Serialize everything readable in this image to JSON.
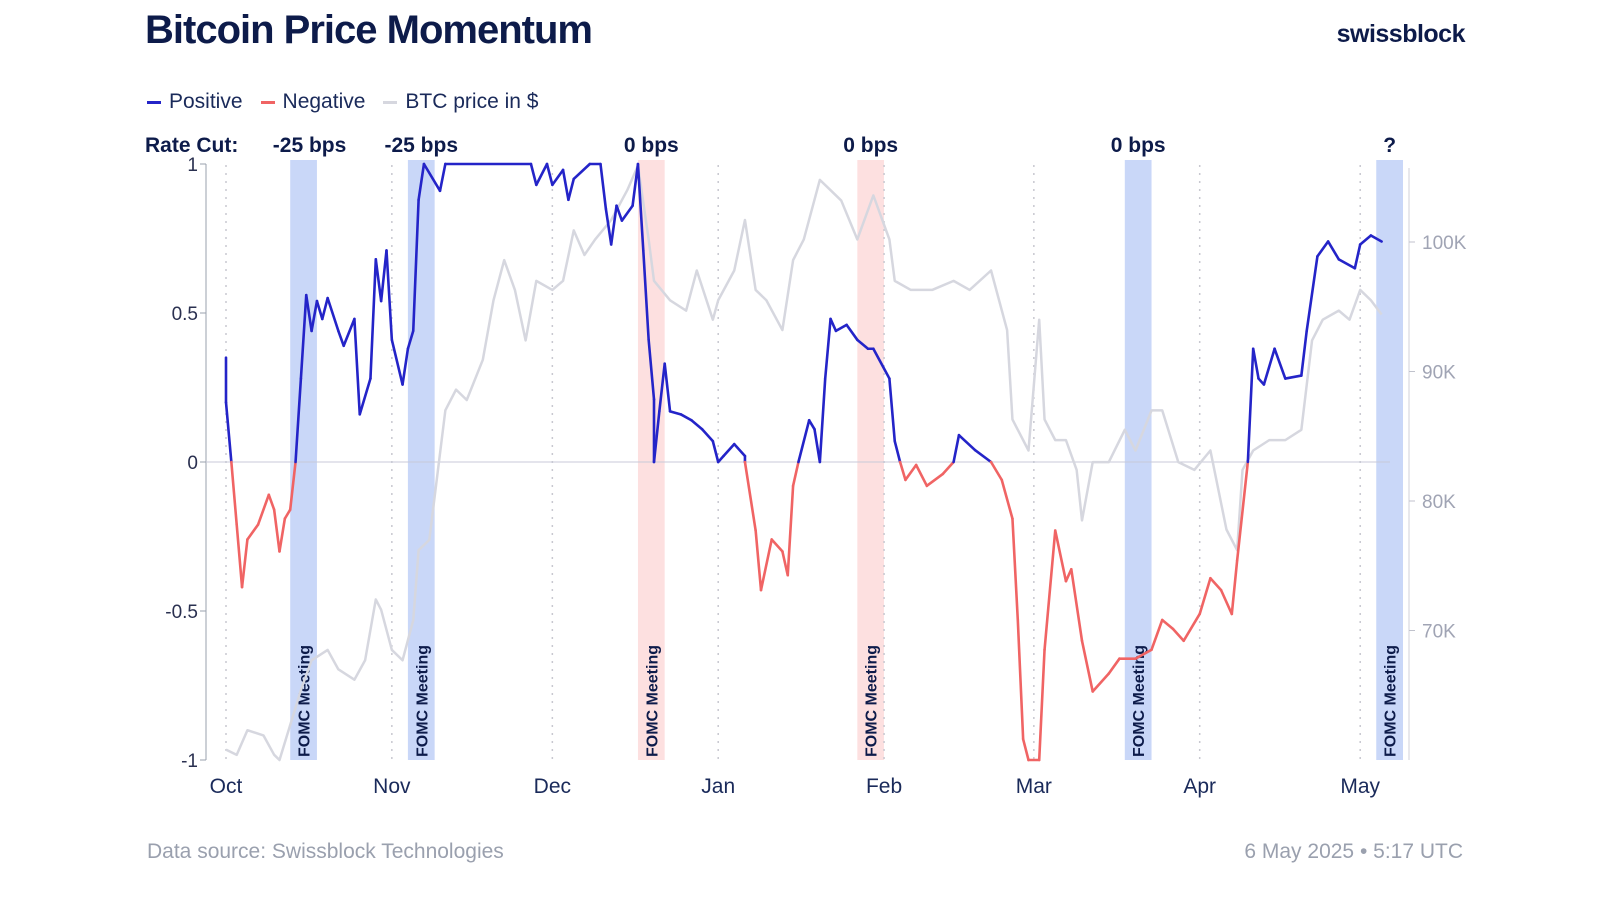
{
  "title": "Bitcoin Price Momentum",
  "logo": "swissblock",
  "footer": {
    "source": "Data source: Swissblock Technologies",
    "timestamp": "6 May 2025 • 5:17 UTC"
  },
  "chart_data": {
    "type": "line",
    "title": "Bitcoin Price Momentum",
    "legend": {
      "placement": "top-left",
      "entries": [
        {
          "name": "Positive",
          "color": "#2424c8"
        },
        {
          "name": "Negative",
          "color": "#f06464"
        },
        {
          "name": "BTC price in $",
          "color": "#d6d7df"
        }
      ]
    },
    "rate_cut_label": "Rate Cut:",
    "x_ticks": [
      {
        "date": "2024-10-01",
        "label": "Oct"
      },
      {
        "date": "2024-11-01",
        "label": "Nov"
      },
      {
        "date": "2024-12-01",
        "label": "Dec"
      },
      {
        "date": "2025-01-01",
        "label": "Jan"
      },
      {
        "date": "2025-02-01",
        "label": "Feb"
      },
      {
        "date": "2025-03-01",
        "label": "Mar"
      },
      {
        "date": "2025-04-01",
        "label": "Apr"
      },
      {
        "date": "2025-05-01",
        "label": "May"
      }
    ],
    "x_range": [
      "2024-10-01",
      "2025-05-09"
    ],
    "y_left": {
      "range": [
        -1,
        1
      ],
      "ticks": [
        {
          "v": 1,
          "label": "1"
        },
        {
          "v": 0.5,
          "label": "0.5"
        },
        {
          "v": 0,
          "label": "0"
        },
        {
          "v": -0.5,
          "label": "-0.5"
        },
        {
          "v": -1,
          "label": "-1"
        }
      ]
    },
    "y_right": {
      "range": [
        60,
        106
      ],
      "unit": "K $",
      "ticks": [
        {
          "v": 100,
          "label": "100K"
        },
        {
          "v": 90,
          "label": "90K"
        },
        {
          "v": 80,
          "label": "80K"
        },
        {
          "v": 70,
          "label": "70K"
        }
      ]
    },
    "fomc_meetings": [
      {
        "start": "2024-10-13",
        "end": "2024-10-18",
        "label": "FOMC Meeting",
        "rate": "-25 bps",
        "color": "#c9d7f8"
      },
      {
        "start": "2024-11-04",
        "end": "2024-11-09",
        "label": "FOMC Meeting",
        "rate": "-25 bps",
        "color": "#c9d7f8"
      },
      {
        "start": "2024-12-17",
        "end": "2024-12-22",
        "label": "FOMC Meeting",
        "rate": "0 bps",
        "color": "#fde0e0"
      },
      {
        "start": "2025-01-27",
        "end": "2025-02-01",
        "label": "FOMC Meeting",
        "rate": "0 bps",
        "color": "#fde0e0"
      },
      {
        "start": "2025-03-18",
        "end": "2025-03-23",
        "label": "FOMC Meeting",
        "rate": "0 bps",
        "color": "#c9d7f8"
      },
      {
        "start": "2025-05-04",
        "end": "2025-05-09",
        "label": "FOMC Meeting",
        "rate": "?",
        "color": "#c9d7f8"
      }
    ],
    "momentum": [
      [
        "2024-10-01",
        0.35
      ],
      [
        "2024-10-01",
        0.2
      ],
      [
        "2024-10-02",
        0
      ],
      [
        "2024-10-03",
        -0.21
      ],
      [
        "2024-10-04",
        -0.42
      ],
      [
        "2024-10-05",
        -0.26
      ],
      [
        "2024-10-07",
        -0.21
      ],
      [
        "2024-10-09",
        -0.11
      ],
      [
        "2024-10-10",
        -0.16
      ],
      [
        "2024-10-11",
        -0.3
      ],
      [
        "2024-10-12",
        -0.19
      ],
      [
        "2024-10-13",
        -0.16
      ],
      [
        "2024-10-14",
        0
      ],
      [
        "2024-10-15",
        0.28
      ],
      [
        "2024-10-16",
        0.56
      ],
      [
        "2024-10-17",
        0.44
      ],
      [
        "2024-10-18",
        0.54
      ],
      [
        "2024-10-19",
        0.48
      ],
      [
        "2024-10-20",
        0.55
      ],
      [
        "2024-10-22",
        0.44
      ],
      [
        "2024-10-23",
        0.39
      ],
      [
        "2024-10-25",
        0.48
      ],
      [
        "2024-10-26",
        0.16
      ],
      [
        "2024-10-28",
        0.28
      ],
      [
        "2024-10-29",
        0.68
      ],
      [
        "2024-10-30",
        0.54
      ],
      [
        "2024-10-31",
        0.71
      ],
      [
        "2024-11-01",
        0.41
      ],
      [
        "2024-11-03",
        0.26
      ],
      [
        "2024-11-04",
        0.38
      ],
      [
        "2024-11-05",
        0.44
      ],
      [
        "2024-11-06",
        0.88
      ],
      [
        "2024-11-07",
        1
      ],
      [
        "2024-11-10",
        0.91
      ],
      [
        "2024-11-11",
        1
      ],
      [
        "2024-11-27",
        1
      ],
      [
        "2024-11-28",
        0.93
      ],
      [
        "2024-11-30",
        1
      ],
      [
        "2024-12-01",
        0.93
      ],
      [
        "2024-12-03",
        0.98
      ],
      [
        "2024-12-04",
        0.88
      ],
      [
        "2024-12-05",
        0.95
      ],
      [
        "2024-12-08",
        1
      ],
      [
        "2024-12-10",
        1
      ],
      [
        "2024-12-11",
        0.85
      ],
      [
        "2024-12-12",
        0.73
      ],
      [
        "2024-12-13",
        0.86
      ],
      [
        "2024-12-14",
        0.81
      ],
      [
        "2024-12-16",
        0.86
      ],
      [
        "2024-12-17",
        1
      ],
      [
        "2024-12-18",
        0.71
      ],
      [
        "2024-12-19",
        0.41
      ],
      [
        "2024-12-20",
        0.21
      ],
      [
        "2024-12-20",
        0
      ],
      [
        "2024-12-21",
        0.17
      ],
      [
        "2024-12-22",
        0.33
      ],
      [
        "2024-12-23",
        0.17
      ],
      [
        "2024-12-25",
        0.16
      ],
      [
        "2024-12-27",
        0.14
      ],
      [
        "2024-12-29",
        0.11
      ],
      [
        "2024-12-31",
        0.07
      ],
      [
        "2025-01-01",
        0
      ],
      [
        "2025-01-02",
        0.02
      ],
      [
        "2025-01-04",
        0.06
      ],
      [
        "2025-01-06",
        0.02
      ],
      [
        "2025-01-06",
        0
      ],
      [
        "2025-01-08",
        -0.23
      ],
      [
        "2025-01-09",
        -0.43
      ],
      [
        "2025-01-11",
        -0.26
      ],
      [
        "2025-01-13",
        -0.3
      ],
      [
        "2025-01-14",
        -0.38
      ],
      [
        "2025-01-15",
        -0.08
      ],
      [
        "2025-01-16",
        0
      ],
      [
        "2025-01-18",
        0.14
      ],
      [
        "2025-01-19",
        0.11
      ],
      [
        "2025-01-20",
        0
      ],
      [
        "2025-01-21",
        0.28
      ],
      [
        "2025-01-22",
        0.48
      ],
      [
        "2025-01-23",
        0.44
      ],
      [
        "2025-01-25",
        0.46
      ],
      [
        "2025-01-27",
        0.41
      ],
      [
        "2025-01-29",
        0.38
      ],
      [
        "2025-01-30",
        0.38
      ],
      [
        "2025-02-02",
        0.28
      ],
      [
        "2025-02-03",
        0.07
      ],
      [
        "2025-02-04",
        0
      ],
      [
        "2025-02-05",
        -0.06
      ],
      [
        "2025-02-07",
        -0.01
      ],
      [
        "2025-02-09",
        -0.08
      ],
      [
        "2025-02-12",
        -0.04
      ],
      [
        "2025-02-14",
        0
      ],
      [
        "2025-02-15",
        0.09
      ],
      [
        "2025-02-18",
        0.04
      ],
      [
        "2025-02-21",
        0
      ],
      [
        "2025-02-23",
        -0.06
      ],
      [
        "2025-02-25",
        -0.19
      ],
      [
        "2025-02-26",
        -0.53
      ],
      [
        "2025-02-27",
        -0.93
      ],
      [
        "2025-02-28",
        -1
      ],
      [
        "2025-03-02",
        -1
      ],
      [
        "2025-03-03",
        -0.63
      ],
      [
        "2025-03-05",
        -0.23
      ],
      [
        "2025-03-07",
        -0.4
      ],
      [
        "2025-03-08",
        -0.36
      ],
      [
        "2025-03-10",
        -0.6
      ],
      [
        "2025-03-12",
        -0.77
      ],
      [
        "2025-03-15",
        -0.71
      ],
      [
        "2025-03-17",
        -0.66
      ],
      [
        "2025-03-20",
        -0.66
      ],
      [
        "2025-03-23",
        -0.63
      ],
      [
        "2025-03-25",
        -0.53
      ],
      [
        "2025-03-27",
        -0.56
      ],
      [
        "2025-03-29",
        -0.6
      ],
      [
        "2025-04-01",
        -0.51
      ],
      [
        "2025-04-03",
        -0.39
      ],
      [
        "2025-04-05",
        -0.43
      ],
      [
        "2025-04-07",
        -0.51
      ],
      [
        "2025-04-08",
        -0.33
      ],
      [
        "2025-04-10",
        0
      ],
      [
        "2025-04-11",
        0.38
      ],
      [
        "2025-04-12",
        0.28
      ],
      [
        "2025-04-13",
        0.26
      ],
      [
        "2025-04-15",
        0.38
      ],
      [
        "2025-04-17",
        0.28
      ],
      [
        "2025-04-20",
        0.29
      ],
      [
        "2025-04-21",
        0.44
      ],
      [
        "2025-04-23",
        0.69
      ],
      [
        "2025-04-25",
        0.74
      ],
      [
        "2025-04-27",
        0.68
      ],
      [
        "2025-04-30",
        0.65
      ],
      [
        "2025-05-01",
        0.73
      ],
      [
        "2025-05-03",
        0.76
      ],
      [
        "2025-05-05",
        0.74
      ]
    ],
    "btc_price_k": [
      [
        "2024-10-01",
        60.8
      ],
      [
        "2024-10-03",
        60.4
      ],
      [
        "2024-10-05",
        62.3
      ],
      [
        "2024-10-08",
        61.9
      ],
      [
        "2024-10-10",
        60.4
      ],
      [
        "2024-10-11",
        60
      ],
      [
        "2024-10-13",
        62.7
      ],
      [
        "2024-10-15",
        65.4
      ],
      [
        "2024-10-17",
        67.7
      ],
      [
        "2024-10-20",
        68.5
      ],
      [
        "2024-10-22",
        67
      ],
      [
        "2024-10-25",
        66.2
      ],
      [
        "2024-10-27",
        67.7
      ],
      [
        "2024-10-29",
        72.4
      ],
      [
        "2024-10-30",
        71.6
      ],
      [
        "2024-11-01",
        68.5
      ],
      [
        "2024-11-03",
        67.7
      ],
      [
        "2024-11-05",
        70.8
      ],
      [
        "2024-11-06",
        76.2
      ],
      [
        "2024-11-08",
        77
      ],
      [
        "2024-11-11",
        87
      ],
      [
        "2024-11-13",
        88.6
      ],
      [
        "2024-11-15",
        87.8
      ],
      [
        "2024-11-18",
        90.9
      ],
      [
        "2024-11-20",
        95.5
      ],
      [
        "2024-11-22",
        98.6
      ],
      [
        "2024-11-24",
        96.3
      ],
      [
        "2024-11-26",
        92.4
      ],
      [
        "2024-11-28",
        97
      ],
      [
        "2024-12-01",
        96.3
      ],
      [
        "2024-12-03",
        97
      ],
      [
        "2024-12-05",
        100.9
      ],
      [
        "2024-12-07",
        99
      ],
      [
        "2024-12-09",
        100.2
      ],
      [
        "2024-12-12",
        101.7
      ],
      [
        "2024-12-15",
        104
      ],
      [
        "2024-12-17",
        105.9
      ],
      [
        "2024-12-19",
        100.2
      ],
      [
        "2024-12-20",
        97
      ],
      [
        "2024-12-23",
        95.5
      ],
      [
        "2024-12-26",
        94.7
      ],
      [
        "2024-12-28",
        97.8
      ],
      [
        "2024-12-31",
        94
      ],
      [
        "2025-01-01",
        95.5
      ],
      [
        "2025-01-04",
        97.8
      ],
      [
        "2025-01-06",
        101.7
      ],
      [
        "2025-01-08",
        96.3
      ],
      [
        "2025-01-10",
        95.5
      ],
      [
        "2025-01-13",
        93.2
      ],
      [
        "2025-01-15",
        98.6
      ],
      [
        "2025-01-17",
        100.2
      ],
      [
        "2025-01-20",
        104.8
      ],
      [
        "2025-01-22",
        104
      ],
      [
        "2025-01-24",
        103.2
      ],
      [
        "2025-01-27",
        100.2
      ],
      [
        "2025-01-30",
        103.6
      ],
      [
        "2025-02-02",
        100.2
      ],
      [
        "2025-02-03",
        97
      ],
      [
        "2025-02-06",
        96.3
      ],
      [
        "2025-02-10",
        96.3
      ],
      [
        "2025-02-14",
        97
      ],
      [
        "2025-02-17",
        96.3
      ],
      [
        "2025-02-21",
        97.8
      ],
      [
        "2025-02-24",
        93.2
      ],
      [
        "2025-02-25",
        86.3
      ],
      [
        "2025-02-27",
        84.7
      ],
      [
        "2025-02-28",
        83.9
      ],
      [
        "2025-03-02",
        94
      ],
      [
        "2025-03-03",
        86.3
      ],
      [
        "2025-03-05",
        84.7
      ],
      [
        "2025-03-07",
        84.7
      ],
      [
        "2025-03-09",
        82.4
      ],
      [
        "2025-03-10",
        78.5
      ],
      [
        "2025-03-12",
        83
      ],
      [
        "2025-03-15",
        83
      ],
      [
        "2025-03-18",
        85.5
      ],
      [
        "2025-03-20",
        83.9
      ],
      [
        "2025-03-23",
        87
      ],
      [
        "2025-03-25",
        87
      ],
      [
        "2025-03-28",
        83
      ],
      [
        "2025-03-31",
        82.4
      ],
      [
        "2025-04-03",
        83.9
      ],
      [
        "2025-04-06",
        77.8
      ],
      [
        "2025-04-08",
        76.2
      ],
      [
        "2025-04-09",
        82.4
      ],
      [
        "2025-04-11",
        83.9
      ],
      [
        "2025-04-14",
        84.7
      ],
      [
        "2025-04-17",
        84.7
      ],
      [
        "2025-04-20",
        85.5
      ],
      [
        "2025-04-22",
        92.4
      ],
      [
        "2025-04-24",
        94
      ],
      [
        "2025-04-27",
        94.7
      ],
      [
        "2025-04-29",
        94
      ],
      [
        "2025-05-01",
        96.3
      ],
      [
        "2025-05-03",
        95.5
      ],
      [
        "2025-05-05",
        94.4
      ]
    ]
  }
}
